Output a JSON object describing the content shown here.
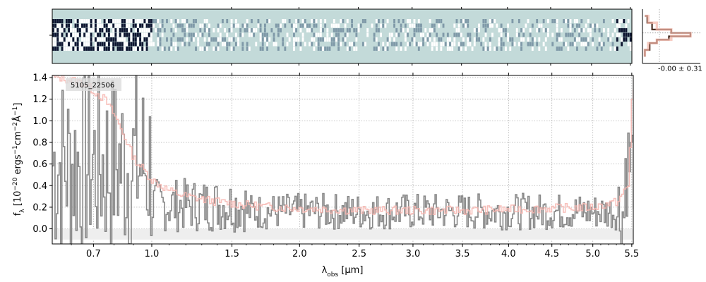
{
  "figure": {
    "object_id": "5105_22506",
    "profile_label": "-0.00 ± 0.31",
    "xlabel_main": "λ",
    "xlabel_sub": "obs",
    "xlabel_unit": " [μm]",
    "ylabel_main": "f",
    "ylabel_sub": "λ",
    "ylabel_unit": " [10",
    "ylabel_exp1": "−20",
    "ylabel_mid": " ergs",
    "ylabel_exp2": "−1",
    "ylabel_mid2": "cm",
    "ylabel_exp3": "−2",
    "ylabel_ang": "Å",
    "ylabel_exp4": "−1",
    "ylabel_end": "]"
  },
  "chart_data": [
    {
      "type": "image",
      "name": "2D spectrum",
      "x_scale": "sqrt",
      "xlim": [
        0.52,
        5.52
      ],
      "colors": {
        "background": "#c3dad9",
        "dark": "#0d1530",
        "light": "#ffffff"
      }
    },
    {
      "type": "line",
      "name": "1D spectrum",
      "x_scale": "sqrt",
      "xlim": [
        0.52,
        5.52
      ],
      "ylim": [
        -0.14,
        1.42
      ],
      "x_ticks": [
        0.7,
        1.0,
        1.5,
        2.0,
        2.5,
        3.0,
        3.5,
        4.0,
        4.5,
        5.0,
        5.5
      ],
      "x_tick_labels": [
        "0.7",
        "1.0",
        "1.5",
        "2.0",
        "2.5",
        "3.0",
        "3.5",
        "4.0",
        "4.5",
        "5.0",
        "5.5"
      ],
      "y_ticks": [
        0.0,
        0.2,
        0.4,
        0.6,
        0.8,
        1.0,
        1.2,
        1.4
      ],
      "y_tick_labels": [
        "0.0",
        "0.2",
        "0.4",
        "0.6",
        "0.8",
        "1.0",
        "1.2",
        "1.4"
      ],
      "grid": true,
      "series": [
        {
          "role": "data",
          "color": "#888888",
          "x": [
            0.55,
            0.6,
            0.65,
            0.7,
            0.75,
            0.8,
            0.85,
            0.9,
            0.95,
            1.0,
            1.1,
            1.2,
            1.3,
            1.4,
            1.5,
            1.6,
            1.7,
            1.8,
            1.9,
            2.0,
            2.2,
            2.4,
            2.6,
            2.8,
            3.0,
            3.2,
            3.4,
            3.6,
            3.8,
            4.0,
            4.2,
            4.4,
            4.6,
            4.8,
            5.0,
            5.2,
            5.4,
            5.5
          ],
          "y": [
            1.5,
            -0.1,
            1.4,
            0.0,
            1.3,
            0.3,
            1.4,
            0.2,
            0.7,
            0.3,
            0.5,
            0.1,
            0.35,
            0.05,
            0.4,
            0.15,
            0.3,
            0.05,
            0.35,
            0.1,
            0.3,
            0.05,
            0.35,
            0.1,
            0.3,
            0.0,
            0.35,
            0.1,
            0.3,
            0.05,
            0.35,
            0.0,
            0.4,
            0.1,
            0.35,
            0.1,
            0.6,
            1.1
          ]
        },
        {
          "role": "model",
          "color": "#f7b6b0",
          "x": [
            0.55,
            0.65,
            0.75,
            0.8,
            0.85,
            0.9,
            0.95,
            1.0,
            1.1,
            1.2,
            1.4,
            1.6,
            1.8,
            2.0,
            2.5,
            3.0,
            3.5,
            4.0,
            4.5,
            5.0,
            5.3,
            5.45,
            5.5
          ],
          "y": [
            1.4,
            1.35,
            1.2,
            1.05,
            0.85,
            0.65,
            0.55,
            0.45,
            0.35,
            0.3,
            0.25,
            0.22,
            0.2,
            0.19,
            0.17,
            0.17,
            0.17,
            0.18,
            0.19,
            0.2,
            0.25,
            0.4,
            1.3
          ]
        }
      ]
    },
    {
      "type": "line",
      "name": "spatial profile",
      "ylim": [
        -4,
        4
      ],
      "series": [
        {
          "role": "profile",
          "color": "#4a2e22",
          "y": [
            -3,
            -2,
            -1,
            -0.5,
            0,
            0.5,
            1,
            2,
            3
          ],
          "x": [
            0.05,
            0.15,
            0.3,
            0.55,
            1.0,
            0.6,
            0.2,
            0.1,
            0.05
          ]
        },
        {
          "role": "model",
          "color": "#f3b6a8",
          "y": [
            -3,
            -2,
            -1,
            -0.5,
            0,
            0.5,
            1,
            2,
            3
          ],
          "x": [
            0.05,
            0.12,
            0.3,
            0.6,
            1.0,
            0.6,
            0.3,
            0.12,
            0.05
          ]
        }
      ]
    }
  ]
}
